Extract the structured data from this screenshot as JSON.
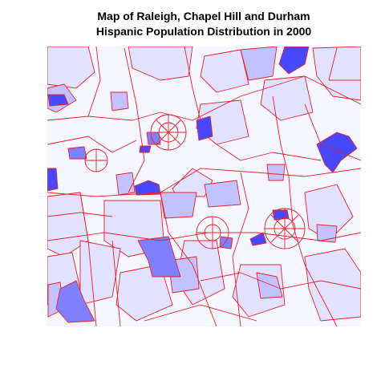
{
  "title": {
    "line1": "Map of Raleigh, Chapel Hill and Durham",
    "line2": "Hispanic Population Distribution in 2000"
  }
}
